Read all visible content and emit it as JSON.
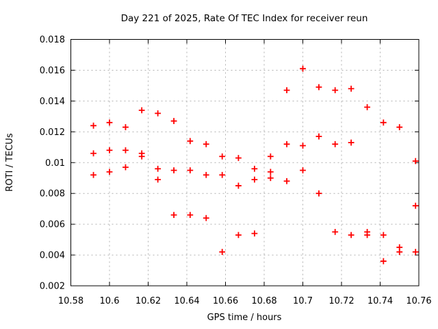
{
  "chart_data": {
    "type": "scatter",
    "title": "Day 221 of 2025, Rate Of TEC Index for receiver reun",
    "xlabel": "GPS time / hours",
    "ylabel": "ROTI / TECUs",
    "xlim": [
      10.58,
      10.76
    ],
    "ylim": [
      0.002,
      0.018
    ],
    "x_ticks": [
      "10.58",
      "10.6",
      "10.62",
      "10.64",
      "10.66",
      "10.68",
      "10.7",
      "10.72",
      "10.74",
      "10.76"
    ],
    "y_ticks": [
      "0.002",
      "0.004",
      "0.006",
      "0.008",
      "0.01",
      "0.012",
      "0.014",
      "0.016",
      "0.018"
    ],
    "grid": true,
    "legend": "none",
    "marker": "plus",
    "marker_color": "#ff0000",
    "grid_color": "#b0b0b0",
    "border_color": "#000000",
    "points": [
      [
        10.5917,
        0.0124
      ],
      [
        10.5917,
        0.0106
      ],
      [
        10.5917,
        0.0092
      ],
      [
        10.6,
        0.0126
      ],
      [
        10.6,
        0.0108
      ],
      [
        10.6,
        0.0094
      ],
      [
        10.6083,
        0.0123
      ],
      [
        10.6083,
        0.0108
      ],
      [
        10.6083,
        0.0097
      ],
      [
        10.6167,
        0.0134
      ],
      [
        10.6167,
        0.0106
      ],
      [
        10.6167,
        0.0104
      ],
      [
        10.625,
        0.0132
      ],
      [
        10.625,
        0.0096
      ],
      [
        10.625,
        0.0089
      ],
      [
        10.6333,
        0.0127
      ],
      [
        10.6333,
        0.0095
      ],
      [
        10.6333,
        0.0066
      ],
      [
        10.6417,
        0.0114
      ],
      [
        10.6417,
        0.0095
      ],
      [
        10.6417,
        0.0066
      ],
      [
        10.65,
        0.0112
      ],
      [
        10.65,
        0.0092
      ],
      [
        10.65,
        0.0064
      ],
      [
        10.6583,
        0.0104
      ],
      [
        10.6583,
        0.0092
      ],
      [
        10.6583,
        0.0042
      ],
      [
        10.6667,
        0.0103
      ],
      [
        10.6667,
        0.0085
      ],
      [
        10.6667,
        0.0053
      ],
      [
        10.675,
        0.0096
      ],
      [
        10.675,
        0.0089
      ],
      [
        10.675,
        0.0054
      ],
      [
        10.6833,
        0.0104
      ],
      [
        10.6833,
        0.0094
      ],
      [
        10.6833,
        0.009
      ],
      [
        10.6917,
        0.0147
      ],
      [
        10.6917,
        0.0112
      ],
      [
        10.6917,
        0.0088
      ],
      [
        10.7,
        0.0161
      ],
      [
        10.7,
        0.0111
      ],
      [
        10.7,
        0.0095
      ],
      [
        10.7083,
        0.0149
      ],
      [
        10.7083,
        0.0117
      ],
      [
        10.7083,
        0.008
      ],
      [
        10.7167,
        0.0147
      ],
      [
        10.7167,
        0.0112
      ],
      [
        10.7167,
        0.0055
      ],
      [
        10.725,
        0.0148
      ],
      [
        10.725,
        0.0113
      ],
      [
        10.725,
        0.0053
      ],
      [
        10.7333,
        0.0136
      ],
      [
        10.7333,
        0.0055
      ],
      [
        10.7333,
        0.0053
      ],
      [
        10.7417,
        0.0126
      ],
      [
        10.7417,
        0.0053
      ],
      [
        10.7417,
        0.0036
      ],
      [
        10.75,
        0.0123
      ],
      [
        10.75,
        0.0045
      ],
      [
        10.75,
        0.0042
      ],
      [
        10.7583,
        0.0101
      ],
      [
        10.7583,
        0.0072
      ],
      [
        10.7583,
        0.0042
      ]
    ]
  }
}
